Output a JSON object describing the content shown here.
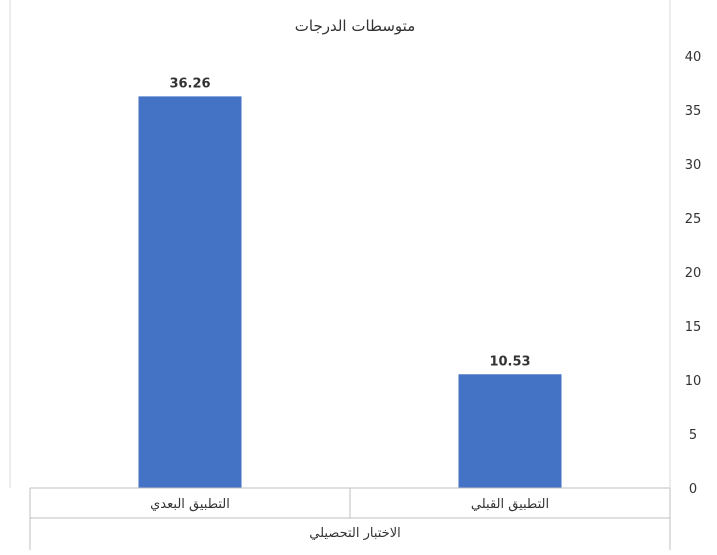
{
  "chart_data": {
    "type": "bar",
    "title": "متوسطات الدرجات",
    "categories": [
      "التطبيق القبلي",
      "التطبيق البعدي"
    ],
    "values": [
      10.53,
      36.26
    ],
    "data_labels": [
      "10.53",
      "36.26"
    ],
    "xlabel": "الاختبار التحصيلي",
    "ylabel": "",
    "ylim": [
      0,
      40
    ],
    "yticks": [
      0,
      5,
      10,
      15,
      20,
      25,
      30,
      35,
      40
    ],
    "y_axis_position": "right",
    "category_order": "right-to-left",
    "grid": false,
    "bar_color": "#4472C4",
    "axis_color": "#BFBFBF"
  }
}
